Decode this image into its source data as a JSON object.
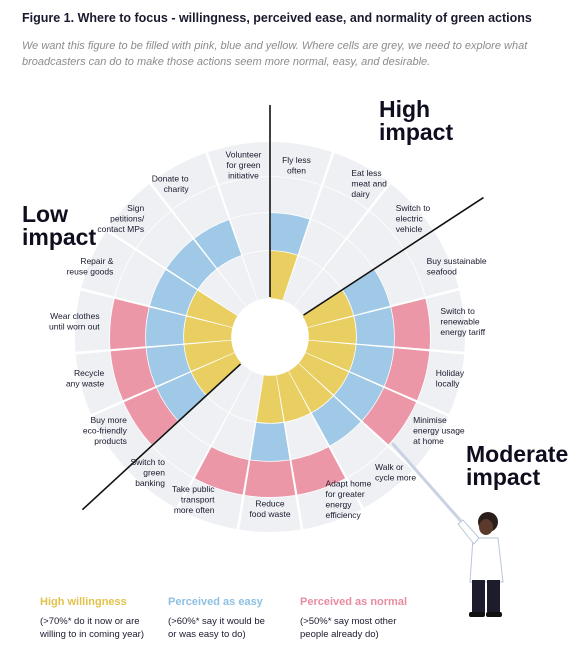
{
  "header": {
    "title": "Figure 1. Where to focus - willingness, perceived ease, and normality of green actions",
    "subtitle": "We want this figure to be filled with pink, blue and yellow. Where cells are grey, we need to explore what broadcasters can do to make those actions seem more normal, easy, and desirable."
  },
  "impact_labels": {
    "high": [
      "High",
      "impact"
    ],
    "low": [
      "Low",
      "impact"
    ],
    "moderate": [
      "Moderate",
      "impact"
    ]
  },
  "legend": [
    {
      "title": "High willingness",
      "color": "#e9cf62",
      "note": [
        "(>70%* do it now or are",
        "willing to in coming year)"
      ]
    },
    {
      "title": "Perceived as easy",
      "color": "#9fc9e6",
      "note": [
        "(>60%* say it would be",
        "or was easy to do)"
      ]
    },
    {
      "title": "Perceived as normal",
      "color": "#ec97a8",
      "note": [
        "(>50%* say most other",
        "people already do)"
      ]
    }
  ],
  "colors": {
    "willingness": "#e9cf62",
    "easy": "#9fc9e6",
    "normal": "#ec97a8",
    "grey": "#eef0f3",
    "divider": "#111111",
    "text": "#1a1a2e"
  },
  "chart_data": {
    "type": "radial-matrix",
    "rings": [
      "High willingness",
      "Perceived as easy",
      "Perceived as normal"
    ],
    "actions": [
      {
        "label": [
          "Fly less",
          "often"
        ],
        "impact": "High",
        "willing": true,
        "easy": true,
        "normal": false
      },
      {
        "label": [
          "Eat less",
          "meat and",
          "dairy"
        ],
        "impact": "High",
        "willing": false,
        "easy": false,
        "normal": false
      },
      {
        "label": [
          "Switch to",
          "electric",
          "vehicle"
        ],
        "impact": "High",
        "willing": false,
        "easy": false,
        "normal": false
      },
      {
        "label": [
          "Buy sustainable",
          "seafood"
        ],
        "impact": "Moderate",
        "willing": true,
        "easy": true,
        "normal": false
      },
      {
        "label": [
          "Switch to",
          "renewable",
          "energy tariff"
        ],
        "impact": "Moderate",
        "willing": true,
        "easy": true,
        "normal": true
      },
      {
        "label": [
          "Holiday",
          "locally"
        ],
        "impact": "Moderate",
        "willing": true,
        "easy": true,
        "normal": true
      },
      {
        "label": [
          "Minimise",
          "energy usage",
          "at home"
        ],
        "impact": "Moderate",
        "willing": true,
        "easy": true,
        "normal": true
      },
      {
        "label": [
          "Walk or",
          "cycle more"
        ],
        "impact": "Moderate",
        "willing": true,
        "easy": true,
        "normal": false
      },
      {
        "label": [
          "Adapt home",
          "for greater",
          "energy",
          "efficiency"
        ],
        "impact": "Moderate",
        "willing": true,
        "easy": false,
        "normal": true
      },
      {
        "label": [
          "Reduce",
          "food waste"
        ],
        "impact": "Moderate",
        "willing": true,
        "easy": true,
        "normal": true
      },
      {
        "label": [
          "Take public",
          "transport",
          "more often"
        ],
        "impact": "Moderate",
        "willing": false,
        "easy": false,
        "normal": true
      },
      {
        "label": [
          "Switch to",
          "green",
          "banking"
        ],
        "impact": "Moderate",
        "willing": false,
        "easy": false,
        "normal": false
      },
      {
        "label": [
          "Buy more",
          "eco-friendly",
          "products"
        ],
        "impact": "Low",
        "willing": true,
        "easy": true,
        "normal": true
      },
      {
        "label": [
          "Recycle",
          "any waste"
        ],
        "impact": "Low",
        "willing": true,
        "easy": true,
        "normal": true
      },
      {
        "label": [
          "Wear clothes",
          "until worn out"
        ],
        "impact": "Low",
        "willing": true,
        "easy": true,
        "normal": true
      },
      {
        "label": [
          "Repair &",
          "reuse goods"
        ],
        "impact": "Low",
        "willing": true,
        "easy": true,
        "normal": false
      },
      {
        "label": [
          "Sign",
          "petitions/",
          "contact MPs"
        ],
        "impact": "Low",
        "willing": false,
        "easy": true,
        "normal": false
      },
      {
        "label": [
          "Donate to",
          "charity"
        ],
        "impact": "Low",
        "willing": false,
        "easy": true,
        "normal": false
      },
      {
        "label": [
          "Volunteer",
          "for green",
          "initiative"
        ],
        "impact": "Low",
        "willing": false,
        "easy": false,
        "normal": false
      }
    ]
  }
}
